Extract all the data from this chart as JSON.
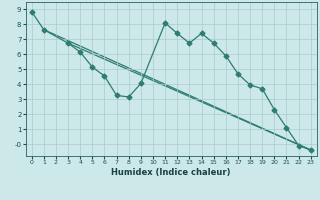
{
  "title": "",
  "xlabel": "Humidex (Indice chaleur)",
  "bg_color": "#cce8e8",
  "grid_color": "#aacccc",
  "line_color": "#2e7d6e",
  "xlim": [
    -0.5,
    23.5
  ],
  "ylim": [
    -0.8,
    9.5
  ],
  "xticks": [
    0,
    1,
    2,
    3,
    4,
    5,
    6,
    7,
    8,
    9,
    10,
    11,
    12,
    13,
    14,
    15,
    16,
    17,
    18,
    19,
    20,
    21,
    22,
    23
  ],
  "yticks": [
    0,
    1,
    2,
    3,
    4,
    5,
    6,
    7,
    8,
    9
  ],
  "ytick_labels": [
    "-0",
    "1",
    "2",
    "3",
    "4",
    "5",
    "6",
    "7",
    "8",
    "9"
  ],
  "series1_x": [
    0,
    1,
    3,
    4,
    5,
    6,
    7,
    8,
    9,
    11,
    12,
    13,
    14,
    15,
    16,
    17,
    18,
    19,
    20,
    21,
    22,
    23
  ],
  "series1_y": [
    8.85,
    7.65,
    6.75,
    6.15,
    5.15,
    4.55,
    3.25,
    3.15,
    4.05,
    8.1,
    7.4,
    6.75,
    7.4,
    6.75,
    5.9,
    4.7,
    3.95,
    3.7,
    2.3,
    1.1,
    -0.1,
    -0.4
  ],
  "series2_x": [
    1,
    23
  ],
  "series2_y": [
    7.65,
    -0.4
  ],
  "series3_x": [
    3,
    23
  ],
  "series3_y": [
    6.75,
    -0.4
  ],
  "markersize": 2.5,
  "linewidth": 0.9
}
